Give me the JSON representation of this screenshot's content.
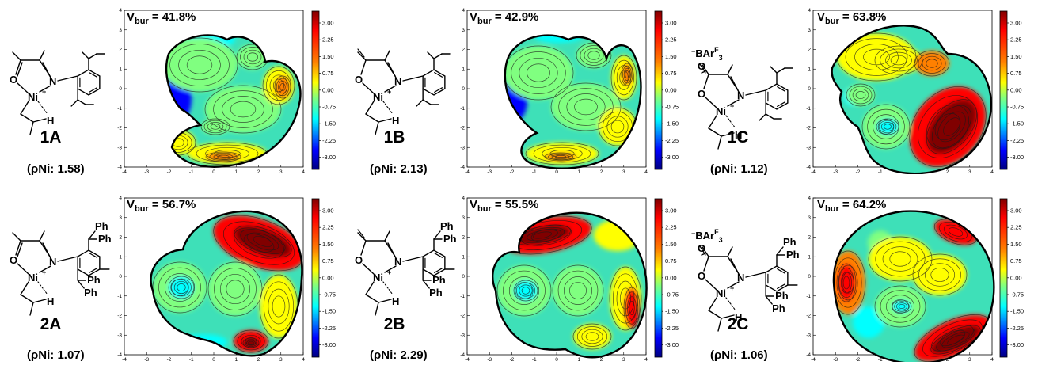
{
  "structures": [
    {
      "id": "1A",
      "rho": "(ρNi: 1.58)",
      "vbur": "V",
      "vbur_sub": "bur",
      "vbur_value": " = 41.8%",
      "counterion": "",
      "aryl": "dipp"
    },
    {
      "id": "1B",
      "rho": "(ρNi: 2.13)",
      "vbur": "V",
      "vbur_sub": "bur",
      "vbur_value": " = 42.9%",
      "counterion": "",
      "aryl": "dipp"
    },
    {
      "id": "1C",
      "rho": "(ρNi: 1.12)",
      "vbur": "V",
      "vbur_sub": "bur",
      "vbur_value": " = 63.8%",
      "counterion": "−BArF3",
      "aryl": "dipp"
    },
    {
      "id": "2A",
      "rho": "(ρNi: 1.07)",
      "vbur": "V",
      "vbur_sub": "bur",
      "vbur_value": " = 56.7%",
      "counterion": "",
      "aryl": "benzhydryl"
    },
    {
      "id": "2B",
      "rho": "(ρNi: 2.29)",
      "vbur": "V",
      "vbur_sub": "bur",
      "vbur_value": " = 55.5%",
      "counterion": "",
      "aryl": "benzhydryl"
    },
    {
      "id": "2C",
      "rho": "(ρNi: 1.06)",
      "vbur": "V",
      "vbur_sub": "bur",
      "vbur_value": " = 64.2%",
      "counterion": "−BArF3",
      "aryl": "benzhydryl"
    }
  ],
  "atoms": {
    "oxygen": "O",
    "nickel": "Ni",
    "nitrogen": "N",
    "hydrogen": "H",
    "phenyl": "Ph",
    "cation": "+",
    "counter_base": "BAr",
    "counter_sup": "F",
    "counter_sub": "3",
    "counter_minus": "−"
  },
  "axis_ticks": [
    "-4",
    "-3",
    "-2",
    "-1",
    "0",
    "1",
    "2",
    "3",
    "4"
  ],
  "colorbar_ticks": [
    "3.00",
    "2.25",
    "1.50",
    "0.75",
    "0.00",
    "-0.75",
    "-1.50",
    "-2.25",
    "-3.00"
  ],
  "colors": {
    "jet_dark_red": "#800000",
    "jet_red": "#ff0000",
    "jet_orange": "#ff8000",
    "jet_yellow": "#ffff00",
    "jet_green": "#80ff80",
    "jet_cyan": "#00ffff",
    "jet_blue": "#0000ff",
    "jet_dark_blue": "#000080"
  }
}
